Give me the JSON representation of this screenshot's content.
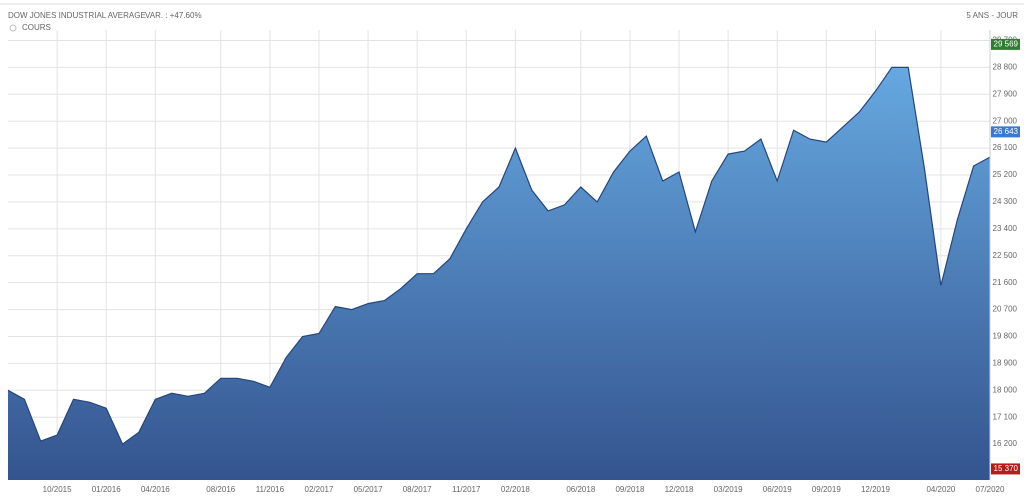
{
  "chart_data": {
    "type": "area",
    "title": "DOW JONES INDUSTRIAL AVERAGE",
    "subtitle": "VAR. : +47.60%",
    "period": "5 ANS - JOUR",
    "grid": true,
    "x": [
      "2015-07",
      "2015-08",
      "2015-09",
      "2015-10",
      "2015-11",
      "2015-12",
      "2016-01",
      "2016-02",
      "2016-03",
      "2016-04",
      "2016-05",
      "2016-06",
      "2016-07",
      "2016-08",
      "2016-09",
      "2016-10",
      "2016-11",
      "2016-12",
      "2017-01",
      "2017-02",
      "2017-03",
      "2017-04",
      "2017-05",
      "2017-06",
      "2017-07",
      "2017-08",
      "2017-09",
      "2017-10",
      "2017-11",
      "2017-12",
      "2018-01",
      "2018-02",
      "2018-03",
      "2018-04",
      "2018-05",
      "2018-06",
      "2018-07",
      "2018-08",
      "2018-09",
      "2018-10",
      "2018-11",
      "2018-12",
      "2019-01",
      "2019-02",
      "2019-03",
      "2019-04",
      "2019-05",
      "2019-06",
      "2019-07",
      "2019-08",
      "2019-09",
      "2019-10",
      "2019-11",
      "2019-12",
      "2020-01",
      "2020-02",
      "2020-03",
      "2020-04",
      "2020-05",
      "2020-06",
      "2020-07"
    ],
    "series": [
      {
        "name": "COURS",
        "color": "#3d6aa8",
        "values": [
          18000,
          17700,
          16300,
          16500,
          17700,
          17600,
          17400,
          16200,
          16600,
          17700,
          17900,
          17800,
          17900,
          18400,
          18400,
          18300,
          18100,
          19100,
          19800,
          19900,
          20800,
          20700,
          20900,
          21000,
          21400,
          21900,
          21900,
          22400,
          23400,
          24300,
          24800,
          26100,
          24700,
          24000,
          24200,
          24800,
          24300,
          25300,
          26000,
          26500,
          25000,
          25300,
          23300,
          25000,
          25900,
          26000,
          26400,
          25000,
          26700,
          26400,
          26300,
          26800,
          27300,
          28000,
          28800,
          28800,
          25400,
          21500,
          23700,
          25500,
          25800
        ]
      }
    ],
    "xlim": [
      "2015-07",
      "2020-07"
    ],
    "xticks": [
      {
        "value": "2015-10",
        "label": "10/2015"
      },
      {
        "value": "2016-01",
        "label": "01/2016"
      },
      {
        "value": "2016-04",
        "label": "04/2016"
      },
      {
        "value": "2016-08",
        "label": "08/2016"
      },
      {
        "value": "2016-11",
        "label": "11/2016"
      },
      {
        "value": "2017-02",
        "label": "02/2017"
      },
      {
        "value": "2017-05",
        "label": "05/2017"
      },
      {
        "value": "2017-08",
        "label": "08/2017"
      },
      {
        "value": "2017-11",
        "label": "11/2017"
      },
      {
        "value": "2018-02",
        "label": "02/2018"
      },
      {
        "value": "2018-06",
        "label": "06/2018"
      },
      {
        "value": "2018-09",
        "label": "09/2018"
      },
      {
        "value": "2018-12",
        "label": "12/2018"
      },
      {
        "value": "2019-03",
        "label": "03/2019"
      },
      {
        "value": "2019-06",
        "label": "06/2019"
      },
      {
        "value": "2019-09",
        "label": "09/2019"
      },
      {
        "value": "2019-12",
        "label": "12/2019"
      },
      {
        "value": "2020-04",
        "label": "04/2020"
      },
      {
        "value": "2020-07",
        "label": "07/2020"
      }
    ],
    "ylim": [
      15000,
      30050
    ],
    "yticks": [
      {
        "value": 16200,
        "label": "16 200"
      },
      {
        "value": 17100,
        "label": "17 100"
      },
      {
        "value": 18000,
        "label": "18 000"
      },
      {
        "value": 18900,
        "label": "18 900"
      },
      {
        "value": 19800,
        "label": "19 800"
      },
      {
        "value": 20700,
        "label": "20 700"
      },
      {
        "value": 21600,
        "label": "21 600"
      },
      {
        "value": 22500,
        "label": "22 500"
      },
      {
        "value": 23400,
        "label": "23 400"
      },
      {
        "value": 24300,
        "label": "24 300"
      },
      {
        "value": 25200,
        "label": "25 200"
      },
      {
        "value": 26100,
        "label": "26 100"
      },
      {
        "value": 27000,
        "label": "27 000"
      },
      {
        "value": 27900,
        "label": "27 900"
      },
      {
        "value": 28800,
        "label": "28 800"
      },
      {
        "value": 29700,
        "label": "29 700"
      }
    ],
    "markers": [
      {
        "value": 29569,
        "label": "29 569",
        "color": "#2e7d32"
      },
      {
        "value": 26643,
        "label": "26 643",
        "color": "#3a78d8"
      },
      {
        "value": 15370,
        "label": "15 370",
        "color": "#b71c1c"
      }
    ]
  }
}
